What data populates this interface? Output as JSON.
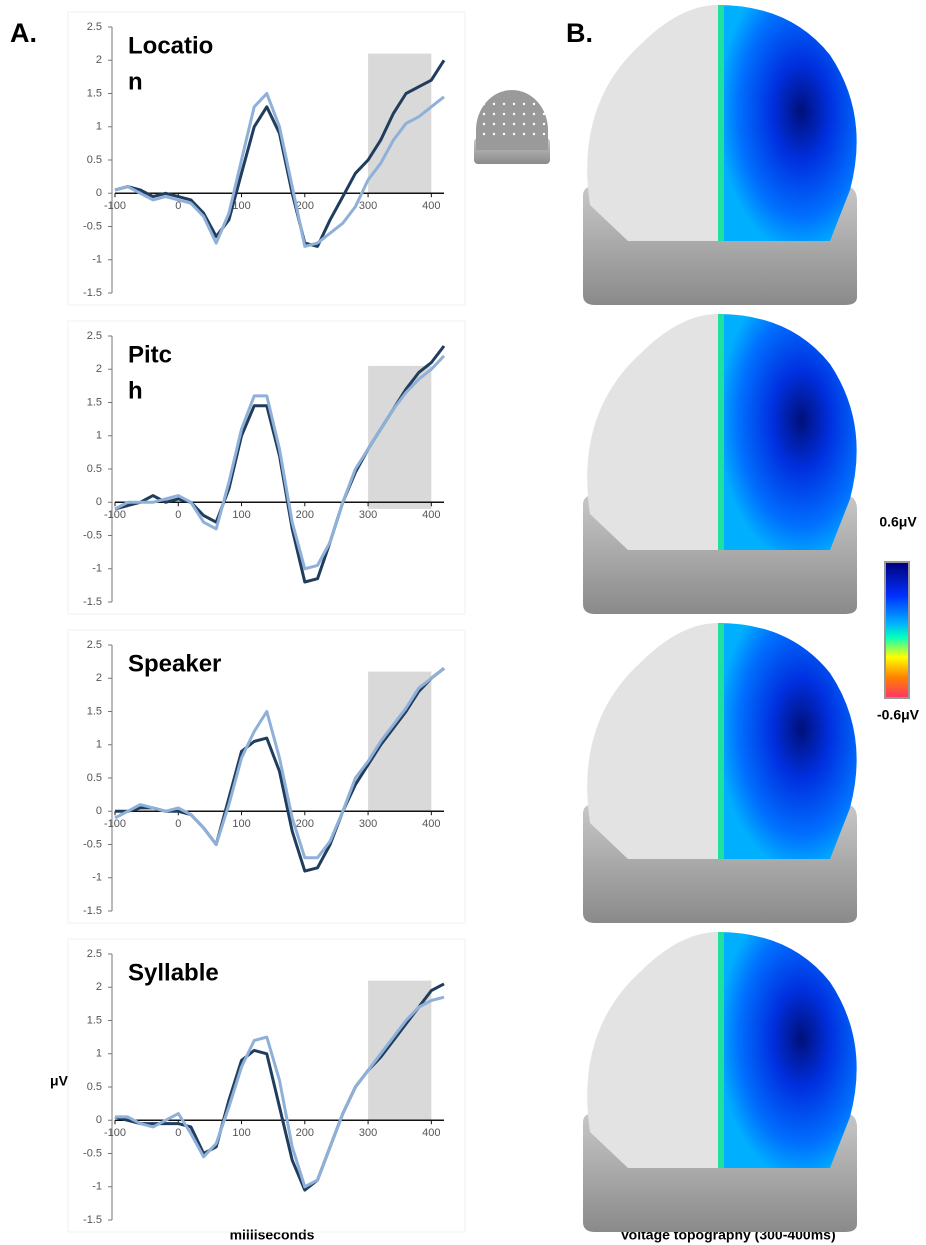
{
  "figure": {
    "panel_a": "A.",
    "panel_b": "B.",
    "y_unit": "μV",
    "x_label": "milliseconds",
    "topo_label": "Voltage topography (300-400ms)",
    "scale_max": "0.6μV",
    "scale_min": "-0.6μV"
  },
  "chart_data": [
    {
      "type": "line",
      "title": [
        "Locatio",
        "n"
      ],
      "x": [
        -100,
        -80,
        -60,
        -40,
        -20,
        0,
        20,
        40,
        60,
        80,
        100,
        120,
        140,
        160,
        180,
        200,
        220,
        240,
        260,
        280,
        300,
        320,
        340,
        360,
        380,
        400,
        420
      ],
      "series": [
        {
          "color": "#213d5e",
          "values": [
            0.05,
            0.1,
            0.05,
            -0.05,
            0,
            -0.05,
            -0.1,
            -0.3,
            -0.65,
            -0.4,
            0.3,
            1.0,
            1.3,
            0.9,
            0.0,
            -0.75,
            -0.8,
            -0.4,
            -0.05,
            0.3,
            0.5,
            0.8,
            1.2,
            1.5,
            1.6,
            1.7,
            2.0
          ]
        },
        {
          "color": "#8fb0d8",
          "values": [
            0.05,
            0.1,
            0,
            -0.1,
            -0.05,
            -0.1,
            -0.15,
            -0.35,
            -0.75,
            -0.3,
            0.5,
            1.3,
            1.5,
            1.0,
            0.1,
            -0.8,
            -0.75,
            -0.6,
            -0.45,
            -0.2,
            0.2,
            0.45,
            0.8,
            1.05,
            1.15,
            1.3,
            1.45
          ]
        }
      ],
      "shade": {
        "x": [
          300,
          400
        ],
        "y": [
          0,
          2.1
        ]
      },
      "xlim": [
        -100,
        420
      ],
      "ylim": [
        -1.5,
        2.5
      ],
      "xticks": [
        -100,
        0,
        100,
        200,
        300,
        400
      ],
      "yticks": [
        2.5,
        2,
        1.5,
        1,
        0.5,
        0,
        -0.5,
        -1,
        -1.5
      ]
    },
    {
      "type": "line",
      "title": [
        "Pitc",
        "h"
      ],
      "x": [
        -100,
        -80,
        -60,
        -40,
        -20,
        0,
        20,
        40,
        60,
        80,
        100,
        120,
        140,
        160,
        180,
        200,
        220,
        240,
        260,
        280,
        300,
        320,
        340,
        360,
        380,
        400,
        420
      ],
      "series": [
        {
          "color": "#213d5e",
          "values": [
            -0.1,
            -0.05,
            0,
            0.1,
            0,
            0.05,
            0,
            -0.2,
            -0.3,
            0.2,
            1.0,
            1.45,
            1.45,
            0.7,
            -0.4,
            -1.2,
            -1.15,
            -0.6,
            0,
            0.45,
            0.8,
            1.1,
            1.4,
            1.7,
            1.95,
            2.1,
            2.35
          ]
        },
        {
          "color": "#8fb0d8",
          "values": [
            -0.1,
            0,
            0,
            0,
            0.05,
            0.1,
            0,
            -0.3,
            -0.4,
            0.3,
            1.1,
            1.6,
            1.6,
            0.8,
            -0.3,
            -1.0,
            -0.95,
            -0.6,
            0.0,
            0.5,
            0.8,
            1.1,
            1.4,
            1.65,
            1.85,
            2.0,
            2.2
          ]
        }
      ],
      "shade": {
        "x": [
          300,
          400
        ],
        "y": [
          -0.1,
          2.05
        ]
      },
      "xlim": [
        -100,
        420
      ],
      "ylim": [
        -1.5,
        2.5
      ],
      "xticks": [
        -100,
        0,
        100,
        200,
        300,
        400
      ],
      "yticks": [
        2.5,
        2,
        1.5,
        1,
        0.5,
        0,
        -0.5,
        -1,
        -1.5
      ]
    },
    {
      "type": "line",
      "title": [
        "Speaker"
      ],
      "x": [
        -100,
        -80,
        -60,
        -40,
        -20,
        0,
        20,
        40,
        60,
        80,
        100,
        120,
        140,
        160,
        180,
        200,
        220,
        240,
        260,
        280,
        300,
        320,
        340,
        360,
        380,
        400,
        420
      ],
      "series": [
        {
          "color": "#213d5e",
          "values": [
            0,
            0,
            0.05,
            0.05,
            0,
            0,
            -0.05,
            -0.25,
            -0.5,
            0.2,
            0.9,
            1.05,
            1.1,
            0.6,
            -0.3,
            -0.9,
            -0.85,
            -0.5,
            0,
            0.4,
            0.7,
            1.0,
            1.25,
            1.5,
            1.8,
            2.0,
            2.15
          ]
        },
        {
          "color": "#8fb0d8",
          "values": [
            -0.1,
            0,
            0.1,
            0.05,
            0,
            0.05,
            -0.05,
            -0.25,
            -0.5,
            0.1,
            0.8,
            1.2,
            1.5,
            0.8,
            -0.1,
            -0.7,
            -0.7,
            -0.45,
            0,
            0.5,
            0.75,
            1.05,
            1.3,
            1.55,
            1.85,
            2.0,
            2.15
          ]
        }
      ],
      "shade": {
        "x": [
          300,
          400
        ],
        "y": [
          0,
          2.1
        ]
      },
      "xlim": [
        -100,
        420
      ],
      "ylim": [
        -1.5,
        2.5
      ],
      "xticks": [
        -100,
        0,
        100,
        200,
        300,
        400
      ],
      "yticks": [
        2.5,
        2,
        1.5,
        1,
        0.5,
        0,
        -0.5,
        -1,
        -1.5
      ]
    },
    {
      "type": "line",
      "title": [
        "Syllable"
      ],
      "x": [
        -100,
        -80,
        -60,
        -40,
        -20,
        0,
        20,
        40,
        60,
        80,
        100,
        120,
        140,
        160,
        180,
        200,
        220,
        240,
        260,
        280,
        300,
        320,
        340,
        360,
        380,
        400,
        420
      ],
      "series": [
        {
          "color": "#213d5e",
          "values": [
            0.05,
            0,
            -0.05,
            -0.05,
            -0.05,
            -0.05,
            -0.1,
            -0.5,
            -0.4,
            0.3,
            0.9,
            1.05,
            1.0,
            0.2,
            -0.6,
            -1.05,
            -0.9,
            -0.4,
            0.1,
            0.5,
            0.75,
            0.95,
            1.2,
            1.45,
            1.7,
            1.95,
            2.05
          ]
        },
        {
          "color": "#8fb0d8",
          "values": [
            0.05,
            0.05,
            -0.05,
            -0.1,
            0,
            0.1,
            -0.2,
            -0.55,
            -0.35,
            0.2,
            0.8,
            1.2,
            1.25,
            0.6,
            -0.4,
            -1.0,
            -0.9,
            -0.4,
            0.1,
            0.5,
            0.75,
            1.0,
            1.25,
            1.5,
            1.7,
            1.8,
            1.85
          ]
        }
      ],
      "shade": {
        "x": [
          300,
          400
        ],
        "y": [
          0,
          2.1
        ]
      },
      "xlim": [
        -100,
        420
      ],
      "ylim": [
        -1.5,
        2.5
      ],
      "xticks": [
        -100,
        0,
        100,
        200,
        300,
        400
      ],
      "yticks": [
        2.5,
        2,
        1.5,
        1,
        0.5,
        0,
        -0.5,
        -1,
        -1.5
      ]
    }
  ]
}
